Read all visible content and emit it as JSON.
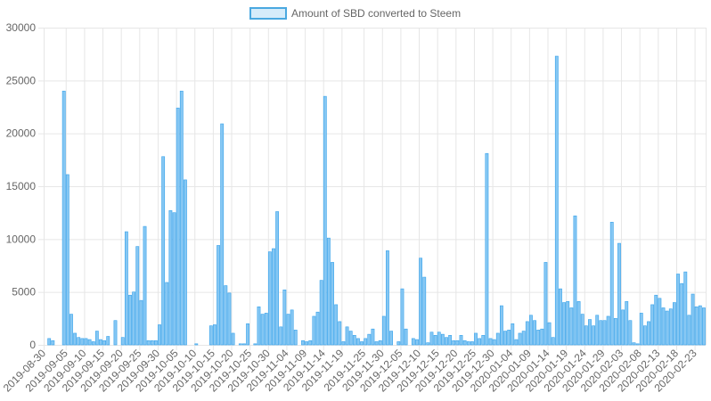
{
  "chart_data": {
    "type": "bar",
    "legend": {
      "label": "Amount of SBD converted to Steem",
      "position": "top-center",
      "swatch_fill": "#d6ecfa",
      "swatch_stroke": "#4aa8e0"
    },
    "colors": {
      "bar_fill": "#86c7f3",
      "bar_stroke": "#36a2eb",
      "grid": "#e6e6e6",
      "axis_text": "#666666"
    },
    "grid": true,
    "ylim": [
      0,
      30000
    ],
    "y_ticks": [
      0,
      5000,
      10000,
      15000,
      20000,
      25000,
      30000
    ],
    "x_start": "2019-08-30",
    "x_ticks": [
      "2019-08-30",
      "2019-09-05",
      "2019-09-10",
      "2019-09-15",
      "2019-09-20",
      "2019-09-25",
      "2019-09-30",
      "2019-10-05",
      "2019-10-10",
      "2019-10-15",
      "2019-10-20",
      "2019-10-25",
      "2019-10-30",
      "2019-11-04",
      "2019-11-09",
      "2019-11-14",
      "2019-11-19",
      "2019-11-25",
      "2019-11-30",
      "2019-12-05",
      "2019-12-10",
      "2019-12-15",
      "2019-12-20",
      "2019-12-25",
      "2019-12-30",
      "2020-01-04",
      "2020-01-09",
      "2020-01-14",
      "2020-01-19",
      "2020-01-24",
      "2020-01-29",
      "2020-02-03",
      "2020-02-08",
      "2020-02-13",
      "2020-02-18",
      "2020-02-23"
    ],
    "values": [
      0,
      600,
      400,
      0,
      0,
      24000,
      16100,
      2900,
      1100,
      700,
      600,
      600,
      500,
      300,
      1300,
      500,
      400,
      800,
      0,
      2300,
      0,
      700,
      10700,
      4700,
      5000,
      9300,
      4200,
      11200,
      400,
      400,
      400,
      1900,
      17800,
      5900,
      12700,
      12500,
      22400,
      24000,
      15600,
      0,
      0,
      100,
      0,
      0,
      0,
      1800,
      1900,
      9400,
      20900,
      5600,
      4900,
      1100,
      0,
      100,
      100,
      2000,
      0,
      100,
      3600,
      2900,
      3000,
      8800,
      9100,
      12600,
      1700,
      5200,
      2900,
      3300,
      1400,
      0,
      400,
      300,
      400,
      2700,
      3100,
      6100,
      23500,
      10100,
      7800,
      3800,
      2200,
      300,
      1700,
      1300,
      900,
      600,
      300,
      600,
      1000,
      1500,
      300,
      400,
      2700,
      8900,
      1300,
      0,
      300,
      5300,
      1500,
      0,
      600,
      500,
      8200,
      6400,
      200,
      1200,
      900,
      1200,
      1000,
      700,
      900,
      400,
      400,
      900,
      400,
      300,
      300,
      1100,
      600,
      900,
      18100,
      600,
      500,
      1100,
      3700,
      1300,
      1400,
      2000,
      500,
      1100,
      1300,
      2200,
      2800,
      2300,
      1400,
      1500,
      7800,
      2100,
      700,
      27300,
      5300,
      4000,
      4100,
      3500,
      12200,
      4100,
      2900,
      1800,
      2400,
      1800,
      2800,
      2300,
      2300,
      2700,
      11600,
      2500,
      9600,
      3300,
      4100,
      2300,
      200,
      100,
      3000,
      1800,
      2200,
      3800,
      4700,
      4400,
      3500,
      3200,
      3400,
      4000,
      6700,
      5800,
      6900,
      2800,
      4800,
      3600,
      3700,
      3500
    ]
  }
}
